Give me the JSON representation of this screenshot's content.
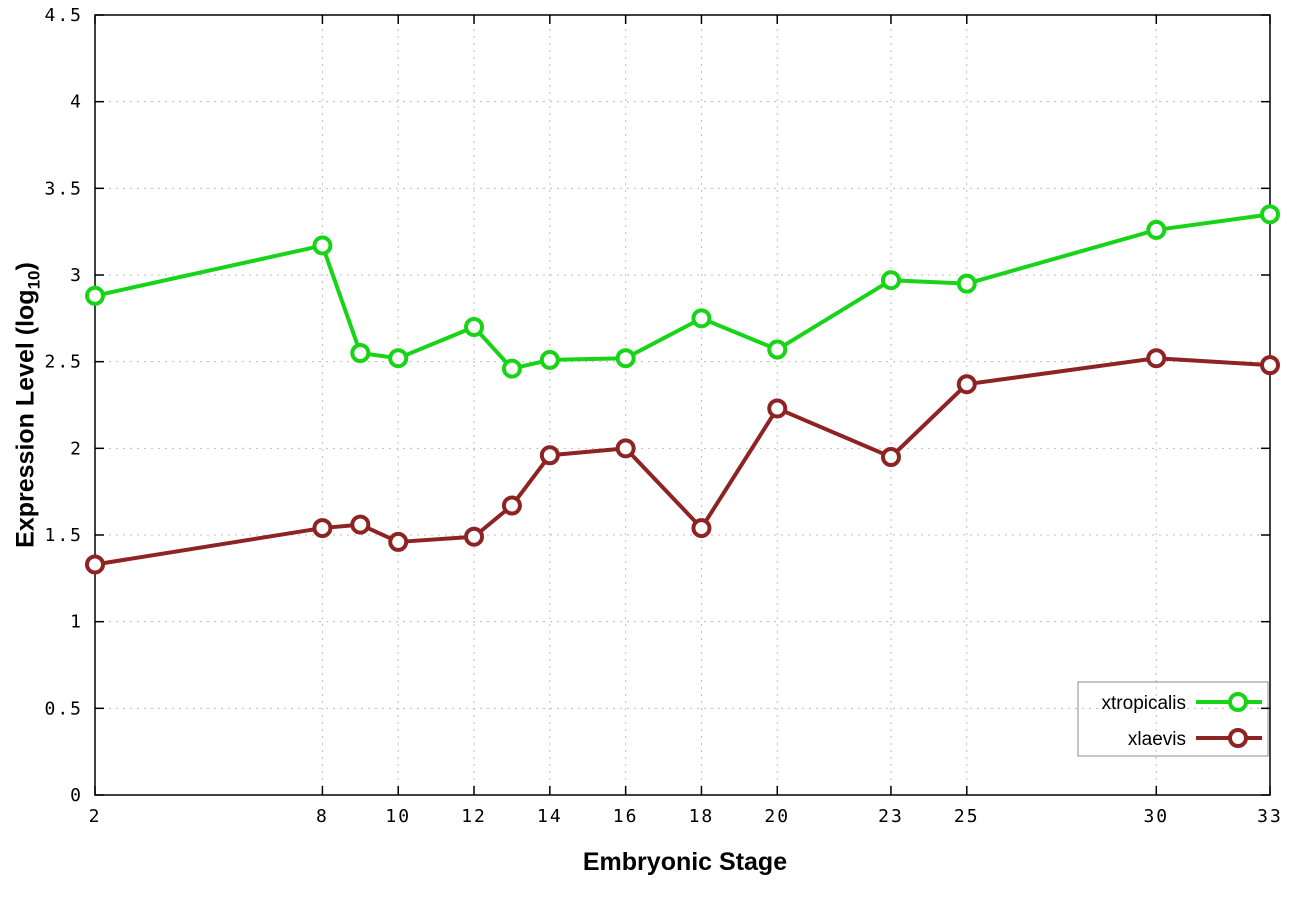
{
  "labels": {
    "xlabel": "Embryonic Stage",
    "ylabel_main": "Expression Level (log",
    "ylabel_sub": "10",
    "ylabel_close": ")"
  },
  "chart_data": {
    "type": "line",
    "title": "",
    "xlabel": "Embryonic Stage",
    "ylabel": "Expression Level (log10)",
    "xlim": [
      2,
      33
    ],
    "ylim": [
      0,
      4.5
    ],
    "xticks": [
      2,
      8,
      10,
      12,
      14,
      16,
      18,
      20,
      23,
      25,
      30,
      33
    ],
    "yticks": [
      0,
      0.5,
      1,
      1.5,
      2,
      2.5,
      3,
      3.5,
      4,
      4.5
    ],
    "ytick_labels": [
      "0",
      "0.5",
      "1",
      "1.5",
      "2",
      "2.5",
      "3",
      "3.5",
      "4",
      "4.5"
    ],
    "grid": true,
    "legend_position": "bottom-right",
    "x": [
      2,
      8,
      9,
      10,
      12,
      13,
      14,
      16,
      18,
      20,
      23,
      25,
      30,
      33
    ],
    "series": [
      {
        "name": "xtropicalis",
        "color": "#17d417",
        "values": [
          2.88,
          3.17,
          2.55,
          2.52,
          2.7,
          2.46,
          2.51,
          2.52,
          2.75,
          2.57,
          2.97,
          2.95,
          3.26,
          3.35
        ]
      },
      {
        "name": "xlaevis",
        "color": "#8e2323",
        "values": [
          1.33,
          1.54,
          1.56,
          1.46,
          1.49,
          1.67,
          1.96,
          2.0,
          1.54,
          2.23,
          1.95,
          2.37,
          2.52,
          2.48
        ]
      }
    ]
  }
}
